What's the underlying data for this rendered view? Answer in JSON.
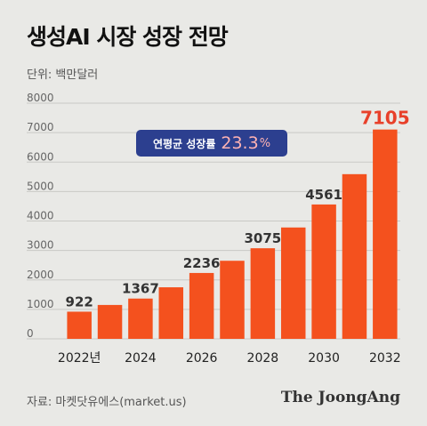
{
  "title": "생성AI 시장 성장 전망",
  "unit": "단위: 백만달러",
  "badge": {
    "label": "연평균 성장률",
    "value": "23.3",
    "pct": "%"
  },
  "source": "자료: 마켓닷유에스(market.us)",
  "brand": "The JoongAng",
  "colors": {
    "bar": "#f4511e",
    "highlight": "#e8402a",
    "badge": "#2c3f8f",
    "background": "#e9e9e6"
  },
  "chart_data": {
    "type": "bar",
    "title": "생성AI 시장 성장 전망",
    "ylabel": "단위: 백만달러",
    "ylim": [
      0,
      8000
    ],
    "yticks": [
      0,
      1000,
      2000,
      3000,
      4000,
      5000,
      6000,
      7000,
      8000
    ],
    "x": [
      2022,
      2023,
      2024,
      2025,
      2026,
      2027,
      2028,
      2029,
      2030,
      2031,
      2032
    ],
    "x_tick_labels": [
      "2022년",
      "2024",
      "2026",
      "2028",
      "2030",
      "2032"
    ],
    "values": [
      922,
      1150,
      1367,
      1750,
      2236,
      2650,
      3075,
      3780,
      4561,
      5590,
      7105
    ],
    "data_labels": [
      "922",
      "",
      "1367",
      "",
      "2236",
      "",
      "3075",
      "",
      "4561",
      "",
      "7105"
    ],
    "grid": true
  }
}
